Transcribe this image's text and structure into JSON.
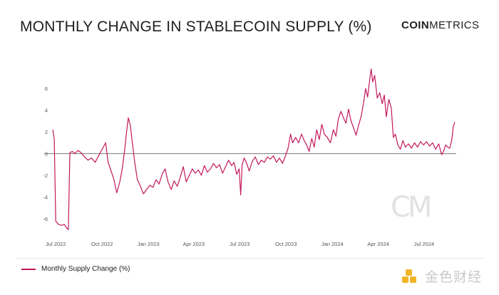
{
  "title": "MONTHLY CHANGE IN STABLECOIN SUPPLY (%)",
  "brand": {
    "bold": "COIN",
    "light": "METRICS"
  },
  "watermark": {
    "mark": "CM",
    "site_text": "金色财经"
  },
  "legend": {
    "label": "Monthly Supply Change (%)"
  },
  "colors": {
    "line": "#c2185b",
    "zero_line": "#777777",
    "tick": "#555555",
    "watermark": "#f0b429"
  },
  "chart_data": {
    "type": "line",
    "title": "MONTHLY CHANGE IN STABLECOIN SUPPLY (%)",
    "xlabel": "",
    "ylabel": "",
    "x_range": [
      "2022-06-25",
      "2024-08-31"
    ],
    "ylim": [
      -7.5,
      8.5
    ],
    "y_ticks": [
      6,
      4,
      2,
      0,
      -2,
      -4,
      -6
    ],
    "x_ticks": [
      "Jul 2022",
      "Oct 2022",
      "Jan 2023",
      "Apr 2023",
      "Jul 2023",
      "Oct 2023",
      "Jan 2024",
      "Apr 2024",
      "Jul 2024"
    ],
    "x_tick_dates": [
      "2022-07-01",
      "2022-10-01",
      "2023-01-01",
      "2023-04-01",
      "2023-07-01",
      "2023-10-01",
      "2024-01-01",
      "2024-04-01",
      "2024-07-01"
    ],
    "grid": false,
    "legend_position": "bottom-left",
    "series": [
      {
        "name": "Monthly Supply Change (%)",
        "points": [
          [
            "2022-06-25",
            2.2
          ],
          [
            "2022-06-28",
            1.4
          ],
          [
            "2022-07-01",
            -6.2
          ],
          [
            "2022-07-06",
            -6.5
          ],
          [
            "2022-07-12",
            -6.6
          ],
          [
            "2022-07-18",
            -6.5
          ],
          [
            "2022-07-22",
            -6.8
          ],
          [
            "2022-07-26",
            -7.0
          ],
          [
            "2022-07-29",
            0.1
          ],
          [
            "2022-08-03",
            0.2
          ],
          [
            "2022-08-08",
            0.0
          ],
          [
            "2022-08-14",
            0.3
          ],
          [
            "2022-08-20",
            0.1
          ],
          [
            "2022-08-27",
            -0.3
          ],
          [
            "2022-09-03",
            -0.6
          ],
          [
            "2022-09-10",
            -0.4
          ],
          [
            "2022-09-17",
            -0.8
          ],
          [
            "2022-09-24",
            -0.2
          ],
          [
            "2022-10-01",
            0.4
          ],
          [
            "2022-10-08",
            1.0
          ],
          [
            "2022-10-13",
            -0.8
          ],
          [
            "2022-10-18",
            -1.5
          ],
          [
            "2022-10-24",
            -2.3
          ],
          [
            "2022-10-30",
            -3.6
          ],
          [
            "2022-11-05",
            -2.6
          ],
          [
            "2022-11-10",
            -1.4
          ],
          [
            "2022-11-15",
            0.5
          ],
          [
            "2022-11-19",
            2.2
          ],
          [
            "2022-11-22",
            3.3
          ],
          [
            "2022-11-26",
            2.6
          ],
          [
            "2022-11-30",
            1.0
          ],
          [
            "2022-12-05",
            -0.9
          ],
          [
            "2022-12-10",
            -2.4
          ],
          [
            "2022-12-16",
            -3.0
          ],
          [
            "2022-12-22",
            -3.7
          ],
          [
            "2022-12-28",
            -3.3
          ],
          [
            "2023-01-04",
            -2.9
          ],
          [
            "2023-01-10",
            -3.1
          ],
          [
            "2023-01-16",
            -2.4
          ],
          [
            "2023-01-22",
            -2.8
          ],
          [
            "2023-01-28",
            -1.9
          ],
          [
            "2023-02-03",
            -1.4
          ],
          [
            "2023-02-09",
            -2.6
          ],
          [
            "2023-02-15",
            -3.3
          ],
          [
            "2023-02-21",
            -2.5
          ],
          [
            "2023-02-27",
            -3.0
          ],
          [
            "2023-03-05",
            -2.2
          ],
          [
            "2023-03-11",
            -1.2
          ],
          [
            "2023-03-17",
            -2.6
          ],
          [
            "2023-03-23",
            -2.0
          ],
          [
            "2023-03-29",
            -1.4
          ],
          [
            "2023-04-04",
            -1.8
          ],
          [
            "2023-04-10",
            -1.5
          ],
          [
            "2023-04-16",
            -2.0
          ],
          [
            "2023-04-22",
            -1.1
          ],
          [
            "2023-04-28",
            -1.7
          ],
          [
            "2023-05-04",
            -1.4
          ],
          [
            "2023-05-10",
            -0.9
          ],
          [
            "2023-05-16",
            -1.3
          ],
          [
            "2023-05-22",
            -1.0
          ],
          [
            "2023-05-28",
            -1.8
          ],
          [
            "2023-06-03",
            -1.2
          ],
          [
            "2023-06-09",
            -0.6
          ],
          [
            "2023-06-15",
            -1.1
          ],
          [
            "2023-06-20",
            -0.8
          ],
          [
            "2023-06-25",
            -1.9
          ],
          [
            "2023-06-30",
            -1.4
          ],
          [
            "2023-07-03",
            -3.8
          ],
          [
            "2023-07-06",
            -1.0
          ],
          [
            "2023-07-10",
            -0.4
          ],
          [
            "2023-07-15",
            -0.9
          ],
          [
            "2023-07-20",
            -1.6
          ],
          [
            "2023-07-26",
            -0.7
          ],
          [
            "2023-08-01",
            -0.3
          ],
          [
            "2023-08-07",
            -1.0
          ],
          [
            "2023-08-13",
            -0.6
          ],
          [
            "2023-08-19",
            -0.8
          ],
          [
            "2023-08-25",
            -0.3
          ],
          [
            "2023-08-31",
            -0.5
          ],
          [
            "2023-09-06",
            -0.2
          ],
          [
            "2023-09-12",
            -0.8
          ],
          [
            "2023-09-18",
            -0.4
          ],
          [
            "2023-09-24",
            -0.9
          ],
          [
            "2023-09-30",
            -0.2
          ],
          [
            "2023-10-05",
            0.5
          ],
          [
            "2023-10-10",
            1.8
          ],
          [
            "2023-10-14",
            1.0
          ],
          [
            "2023-10-20",
            1.5
          ],
          [
            "2023-10-26",
            1.0
          ],
          [
            "2023-11-01",
            1.8
          ],
          [
            "2023-11-06",
            1.2
          ],
          [
            "2023-11-11",
            0.8
          ],
          [
            "2023-11-16",
            0.2
          ],
          [
            "2023-11-21",
            1.4
          ],
          [
            "2023-11-26",
            0.6
          ],
          [
            "2023-12-01",
            2.2
          ],
          [
            "2023-12-06",
            1.3
          ],
          [
            "2023-12-11",
            2.7
          ],
          [
            "2023-12-16",
            1.8
          ],
          [
            "2023-12-22",
            1.5
          ],
          [
            "2023-12-28",
            1.0
          ],
          [
            "2024-01-03",
            2.2
          ],
          [
            "2024-01-08",
            1.6
          ],
          [
            "2024-01-13",
            3.2
          ],
          [
            "2024-01-18",
            3.9
          ],
          [
            "2024-01-23",
            3.3
          ],
          [
            "2024-01-28",
            2.8
          ],
          [
            "2024-02-02",
            4.1
          ],
          [
            "2024-02-07",
            3.0
          ],
          [
            "2024-02-12",
            2.4
          ],
          [
            "2024-02-17",
            1.7
          ],
          [
            "2024-02-22",
            2.6
          ],
          [
            "2024-02-27",
            3.4
          ],
          [
            "2024-03-03",
            4.7
          ],
          [
            "2024-03-07",
            6.0
          ],
          [
            "2024-03-11",
            5.2
          ],
          [
            "2024-03-15",
            6.8
          ],
          [
            "2024-03-18",
            7.8
          ],
          [
            "2024-03-21",
            6.6
          ],
          [
            "2024-03-25",
            7.2
          ],
          [
            "2024-03-30",
            5.1
          ],
          [
            "2024-04-04",
            5.6
          ],
          [
            "2024-04-09",
            4.6
          ],
          [
            "2024-04-13",
            5.4
          ],
          [
            "2024-04-17",
            3.4
          ],
          [
            "2024-04-22",
            5.0
          ],
          [
            "2024-04-27",
            4.2
          ],
          [
            "2024-05-01",
            1.5
          ],
          [
            "2024-05-05",
            1.8
          ],
          [
            "2024-05-10",
            0.8
          ],
          [
            "2024-05-15",
            0.4
          ],
          [
            "2024-05-20",
            1.2
          ],
          [
            "2024-05-25",
            0.6
          ],
          [
            "2024-05-31",
            0.9
          ],
          [
            "2024-06-06",
            0.5
          ],
          [
            "2024-06-12",
            1.0
          ],
          [
            "2024-06-18",
            0.6
          ],
          [
            "2024-06-24",
            1.1
          ],
          [
            "2024-06-30",
            0.8
          ],
          [
            "2024-07-06",
            1.1
          ],
          [
            "2024-07-12",
            0.7
          ],
          [
            "2024-07-18",
            1.0
          ],
          [
            "2024-07-24",
            0.4
          ],
          [
            "2024-07-30",
            0.9
          ],
          [
            "2024-08-05",
            -0.1
          ],
          [
            "2024-08-09",
            0.3
          ],
          [
            "2024-08-13",
            0.8
          ],
          [
            "2024-08-17",
            0.6
          ],
          [
            "2024-08-21",
            0.5
          ],
          [
            "2024-08-25",
            1.3
          ],
          [
            "2024-08-28",
            2.5
          ],
          [
            "2024-08-31",
            2.9
          ]
        ]
      }
    ]
  }
}
